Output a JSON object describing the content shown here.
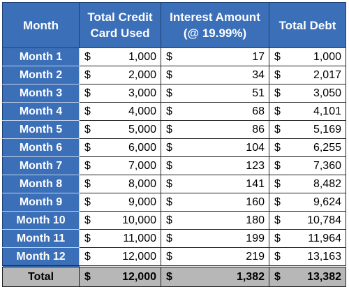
{
  "table": {
    "headers": {
      "month": "Month",
      "credit_line1": "Total Credit",
      "credit_line2": "Card Used",
      "interest_line1": "Interest Amount",
      "interest_line2": "(@ 19.99%)",
      "debt": "Total Debt"
    },
    "currency": "$",
    "rows": [
      {
        "month": "Month 1",
        "credit": "1,000",
        "interest": "17",
        "debt": "1,000"
      },
      {
        "month": "Month 2",
        "credit": "2,000",
        "interest": "34",
        "debt": "2,017"
      },
      {
        "month": "Month 3",
        "credit": "3,000",
        "interest": "51",
        "debt": "3,050"
      },
      {
        "month": "Month 4",
        "credit": "4,000",
        "interest": "68",
        "debt": "4,101"
      },
      {
        "month": "Month 5",
        "credit": "5,000",
        "interest": "86",
        "debt": "5,169"
      },
      {
        "month": "Month 6",
        "credit": "6,000",
        "interest": "104",
        "debt": "6,255"
      },
      {
        "month": "Month 7",
        "credit": "7,000",
        "interest": "123",
        "debt": "7,360"
      },
      {
        "month": "Month 8",
        "credit": "8,000",
        "interest": "141",
        "debt": "8,482"
      },
      {
        "month": "Month 9",
        "credit": "9,000",
        "interest": "160",
        "debt": "9,624"
      },
      {
        "month": "Month 10",
        "credit": "10,000",
        "interest": "180",
        "debt": "10,784"
      },
      {
        "month": "Month 11",
        "credit": "11,000",
        "interest": "199",
        "debt": "11,964"
      },
      {
        "month": "Month 12",
        "credit": "12,000",
        "interest": "219",
        "debt": "13,163"
      }
    ],
    "total": {
      "label": "Total",
      "credit": "12,000",
      "interest": "1,382",
      "debt": "13,382"
    },
    "colors": {
      "header_bg": "#3b6fb8",
      "header_text": "#ffffff",
      "total_bg": "#b7b7b7"
    }
  }
}
